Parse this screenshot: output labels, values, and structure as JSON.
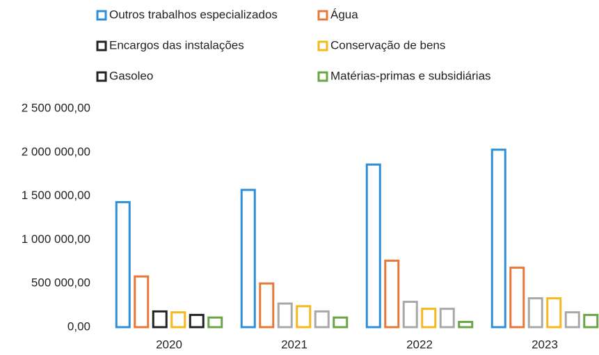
{
  "chart_data": {
    "type": "bar",
    "categories": [
      "2020",
      "2021",
      "2022",
      "2023"
    ],
    "series": [
      {
        "name": "Outros trabalhos especializados",
        "color": "#2e8fd8",
        "values": [
          1430000,
          1570000,
          1860000,
          2030000
        ]
      },
      {
        "name": "Água",
        "color": "#e8773a",
        "values": [
          580000,
          500000,
          760000,
          680000
        ]
      },
      {
        "name": "Encargos das instalações",
        "color": "#222222",
        "colors": [
          "#222222",
          "#a8a8a8",
          "#a8a8a8",
          "#a8a8a8"
        ],
        "values": [
          180000,
          270000,
          290000,
          330000
        ]
      },
      {
        "name": "Conservação de bens",
        "color": "#f7b81e",
        "values": [
          170000,
          240000,
          210000,
          330000
        ]
      },
      {
        "name": "Gasoleo",
        "color": "#222222",
        "colors": [
          "#222222",
          "#a8a8a8",
          "#a8a8a8",
          "#a8a8a8"
        ],
        "values": [
          140000,
          180000,
          210000,
          170000
        ]
      },
      {
        "name": "Matérias-primas e subsidiárias",
        "color": "#6aa446",
        "values": [
          110000,
          110000,
          60000,
          140000
        ]
      }
    ],
    "ylim": [
      0,
      2500000
    ],
    "yticks": [
      {
        "value": 0,
        "label": "0,00"
      },
      {
        "value": 500000,
        "label": "500 000,00"
      },
      {
        "value": 1000000,
        "label": "1 000 000,00"
      },
      {
        "value": 1500000,
        "label": "1 500 000,00"
      },
      {
        "value": 2000000,
        "label": "2 000 000,00"
      },
      {
        "value": 2500000,
        "label": "2 500 000,00"
      }
    ],
    "grid": false,
    "legend": "top"
  }
}
